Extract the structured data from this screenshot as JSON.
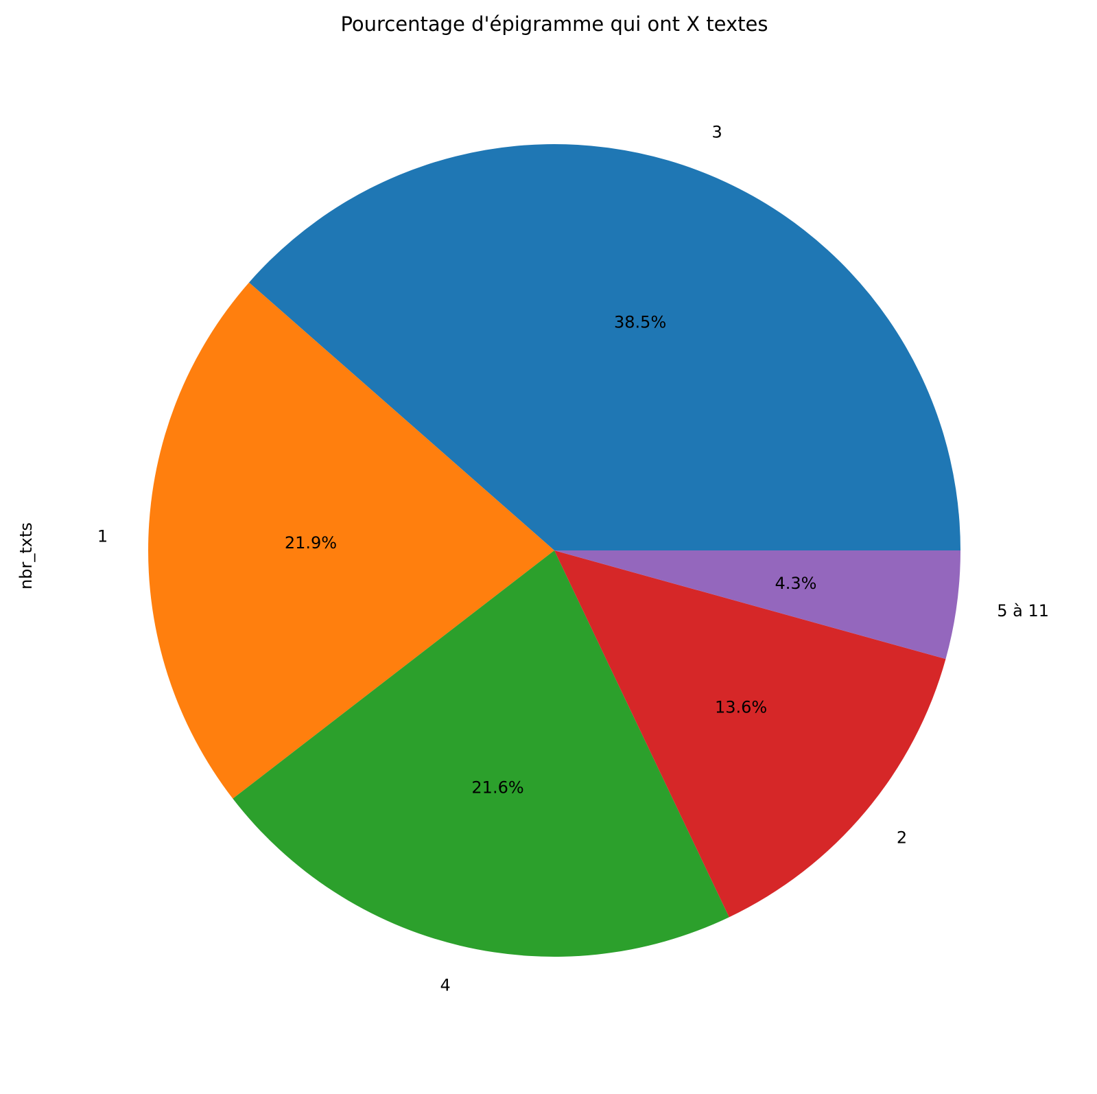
{
  "chart_data": {
    "type": "pie",
    "title": "Pourcentage d'épigramme qui ont X textes",
    "ylabel": "nbr_txts",
    "start_angle": "0 degrees (east)",
    "direction": "counterclockwise",
    "legend": "none",
    "slices": [
      {
        "label": "3",
        "value": 38.5,
        "pct_label": "38.5%",
        "color": "#1f77b4"
      },
      {
        "label": "1",
        "value": 21.9,
        "pct_label": "21.9%",
        "color": "#ff7f0e"
      },
      {
        "label": "4",
        "value": 21.6,
        "pct_label": "21.6%",
        "color": "#2ca02c"
      },
      {
        "label": "2",
        "value": 13.6,
        "pct_label": "13.6%",
        "color": "#d62728"
      },
      {
        "label": "5 à 11",
        "value": 4.3,
        "pct_label": "4.3%",
        "color": "#9467bd"
      }
    ]
  }
}
